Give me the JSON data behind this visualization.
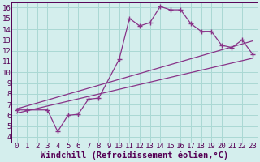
{
  "xlabel": "Windchill (Refroidissement éolien,°C)",
  "bg_color": "#d4eeed",
  "grid_color": "#aad8d4",
  "line_color": "#883388",
  "xlim": [
    -0.5,
    23.5
  ],
  "ylim": [
    3.5,
    16.5
  ],
  "xticks": [
    0,
    1,
    2,
    3,
    4,
    5,
    6,
    7,
    8,
    9,
    10,
    11,
    12,
    13,
    14,
    15,
    16,
    17,
    18,
    19,
    20,
    21,
    22,
    23
  ],
  "yticks": [
    4,
    5,
    6,
    7,
    8,
    9,
    10,
    11,
    12,
    13,
    14,
    15,
    16
  ],
  "pts_x": [
    0,
    1,
    3,
    4,
    5,
    6,
    7,
    8,
    10,
    11,
    12,
    13,
    14,
    15,
    16,
    17,
    18,
    19,
    20,
    21,
    22,
    23
  ],
  "pts_y": [
    6.5,
    6.5,
    6.5,
    4.5,
    6.0,
    6.1,
    7.5,
    7.6,
    11.2,
    15.0,
    14.3,
    14.6,
    16.1,
    15.8,
    15.8,
    14.5,
    13.8,
    13.8,
    12.5,
    12.3,
    13.0,
    11.7
  ],
  "line2_x": [
    0,
    23
  ],
  "line2_y": [
    6.2,
    11.3
  ],
  "line3_x": [
    0,
    23
  ],
  "line3_y": [
    6.6,
    12.9
  ],
  "marker": "+",
  "marker_size": 5,
  "lw": 0.9,
  "tick_fontsize": 6.5,
  "xlabel_fontsize": 7.5
}
